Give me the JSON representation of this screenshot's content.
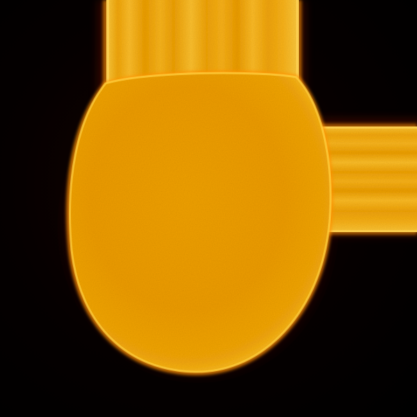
{
  "image": {
    "subject": "bulb",
    "palette": {
      "background": "#000000",
      "halo": "#5a0f00",
      "edge_glow": "#ff9a00",
      "bulb_fill": "#f0a000",
      "bulb_highlight": "#ffc020",
      "bulb_shadow": "#d88400",
      "wire_fill": "#f5ad10",
      "wire_streak": "#ffcc40"
    }
  }
}
